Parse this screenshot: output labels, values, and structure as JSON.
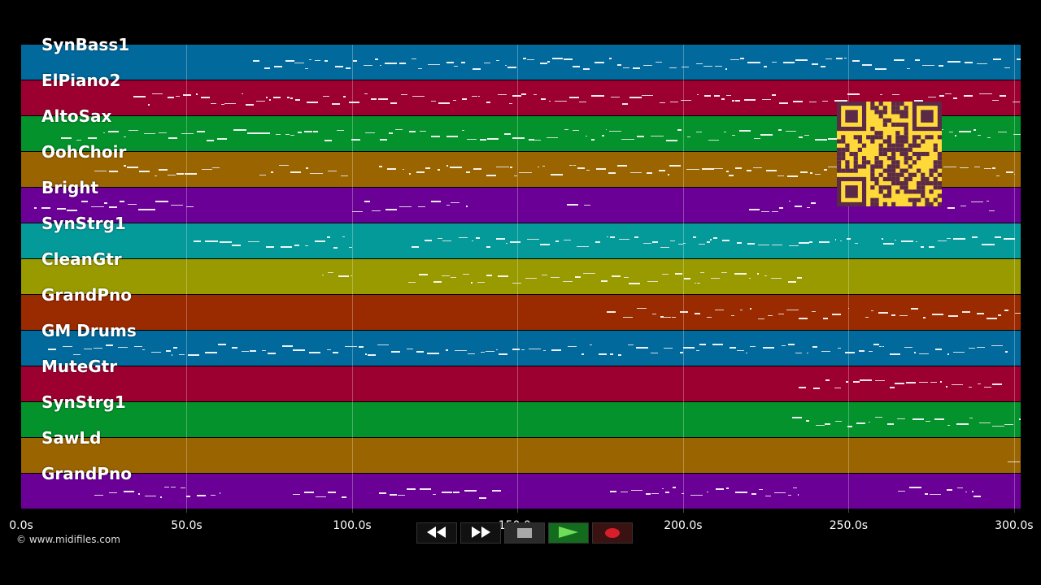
{
  "tracks": [
    {
      "name": "SynBass1",
      "color": "#02699c"
    },
    {
      "name": "ElPiano2",
      "color": "#9c0031"
    },
    {
      "name": "AltoSax",
      "color": "#03922b"
    },
    {
      "name": "OohChoir",
      "color": "#9a6401"
    },
    {
      "name": "Bright",
      "color": "#6a0096"
    },
    {
      "name": "SynStrg1",
      "color": "#049a9a"
    },
    {
      "name": "CleanGtr",
      "color": "#989a00"
    },
    {
      "name": "GrandPno",
      "color": "#9a2a00"
    },
    {
      "name": "GM Drums",
      "color": "#02699c"
    },
    {
      "name": "MuteGtr",
      "color": "#9c0031"
    },
    {
      "name": "SynStrg1",
      "color": "#03922b"
    },
    {
      "name": "SawLd",
      "color": "#9a6401"
    },
    {
      "name": "GrandPno",
      "color": "#6a0096"
    }
  ],
  "time_axis": {
    "ticks": [
      "0.0s",
      "50.0s",
      "100.0s",
      "150.0s",
      "200.0s",
      "250.0s",
      "300.0s"
    ],
    "tick_values": [
      0,
      50,
      100,
      150,
      200,
      250,
      300
    ],
    "max_seconds": 302
  },
  "copyright": "© www.midifiles.com",
  "qr_code": {
    "color": "#ffd83a",
    "dark": "#5a2a46"
  },
  "transport": {
    "buttons": [
      {
        "name": "rewind",
        "icon": "rewind-icon",
        "glyph": "◀◀"
      },
      {
        "name": "fast-forward",
        "icon": "fast-forward-icon",
        "glyph": "▶▶"
      },
      {
        "name": "stop",
        "icon": "stop-icon"
      },
      {
        "name": "play",
        "icon": "play-icon"
      },
      {
        "name": "record",
        "icon": "record-icon"
      }
    ]
  }
}
